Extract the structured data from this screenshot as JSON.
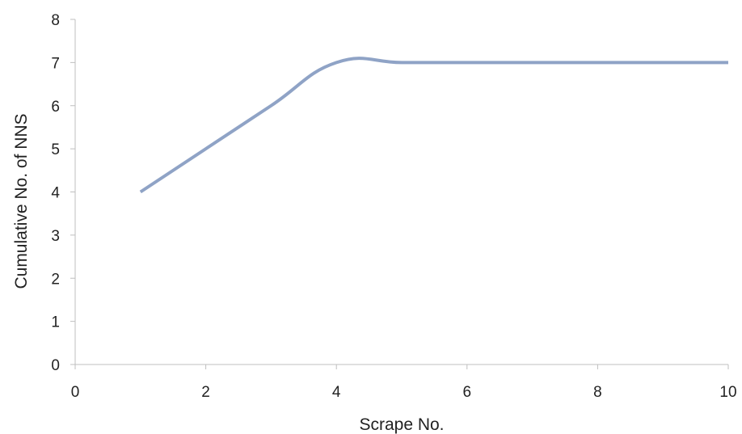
{
  "chart_data": {
    "type": "line",
    "title": "",
    "xlabel": "Scrape No.",
    "ylabel": "Cumulative No. of NNS",
    "xlim": [
      0,
      10
    ],
    "ylim": [
      0,
      8
    ],
    "x_ticks": [
      0,
      2,
      4,
      6,
      8,
      10
    ],
    "y_ticks": [
      0,
      1,
      2,
      3,
      4,
      5,
      6,
      7,
      8
    ],
    "grid": false,
    "legend": "none",
    "smooth": true,
    "series": [
      {
        "color": "#8FA3C6",
        "x": [
          1,
          2,
          3,
          4,
          5,
          6,
          7,
          8,
          9,
          10
        ],
        "y": [
          4,
          5,
          6,
          7,
          7,
          7,
          7,
          7,
          7,
          7
        ]
      }
    ]
  }
}
